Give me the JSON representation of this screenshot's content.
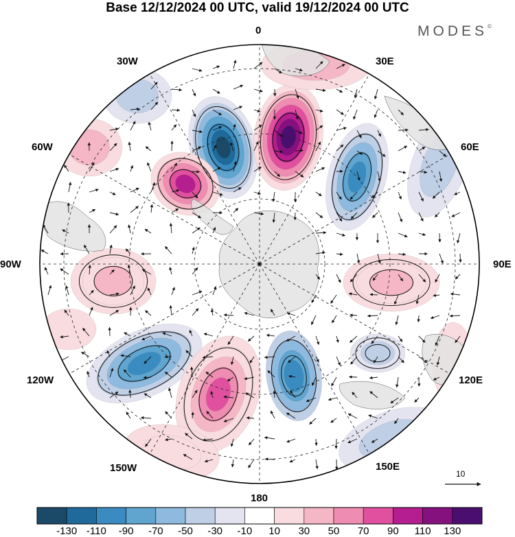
{
  "title": "Base 12/12/2024 00 UTC, valid 19/12/2024 00 UTC",
  "brand": "MODES",
  "brand_mark": "©",
  "longitude_labels": {
    "lon_0": "0",
    "lon_30e": "30E",
    "lon_60e": "60E",
    "lon_90e": "90E",
    "lon_120e": "120E",
    "lon_150e": "150E",
    "lon_180": "180",
    "lon_150w": "150W",
    "lon_120w": "120W",
    "lon_90w": "90W",
    "lon_60w": "60W",
    "lon_30w": "30W"
  },
  "reference_vector": "10",
  "colorbar": {
    "ticks": [
      "-130",
      "-110",
      "-90",
      "-70",
      "-50",
      "-30",
      "-10",
      "10",
      "30",
      "50",
      "70",
      "90",
      "110",
      "130"
    ],
    "colors": [
      "#1b4a68",
      "#1f6a9a",
      "#3a8cc0",
      "#5fa5d0",
      "#8fbadf",
      "#bfcfe6",
      "#e4e4f0",
      "#ffffff",
      "#f9dcdf",
      "#f5b7c5",
      "#ee8cb1",
      "#e0509e",
      "#b51e8e",
      "#85117f",
      "#4a0f6e"
    ]
  },
  "colors": {
    "land": "#e3e3e3",
    "grid": "#222222"
  }
}
